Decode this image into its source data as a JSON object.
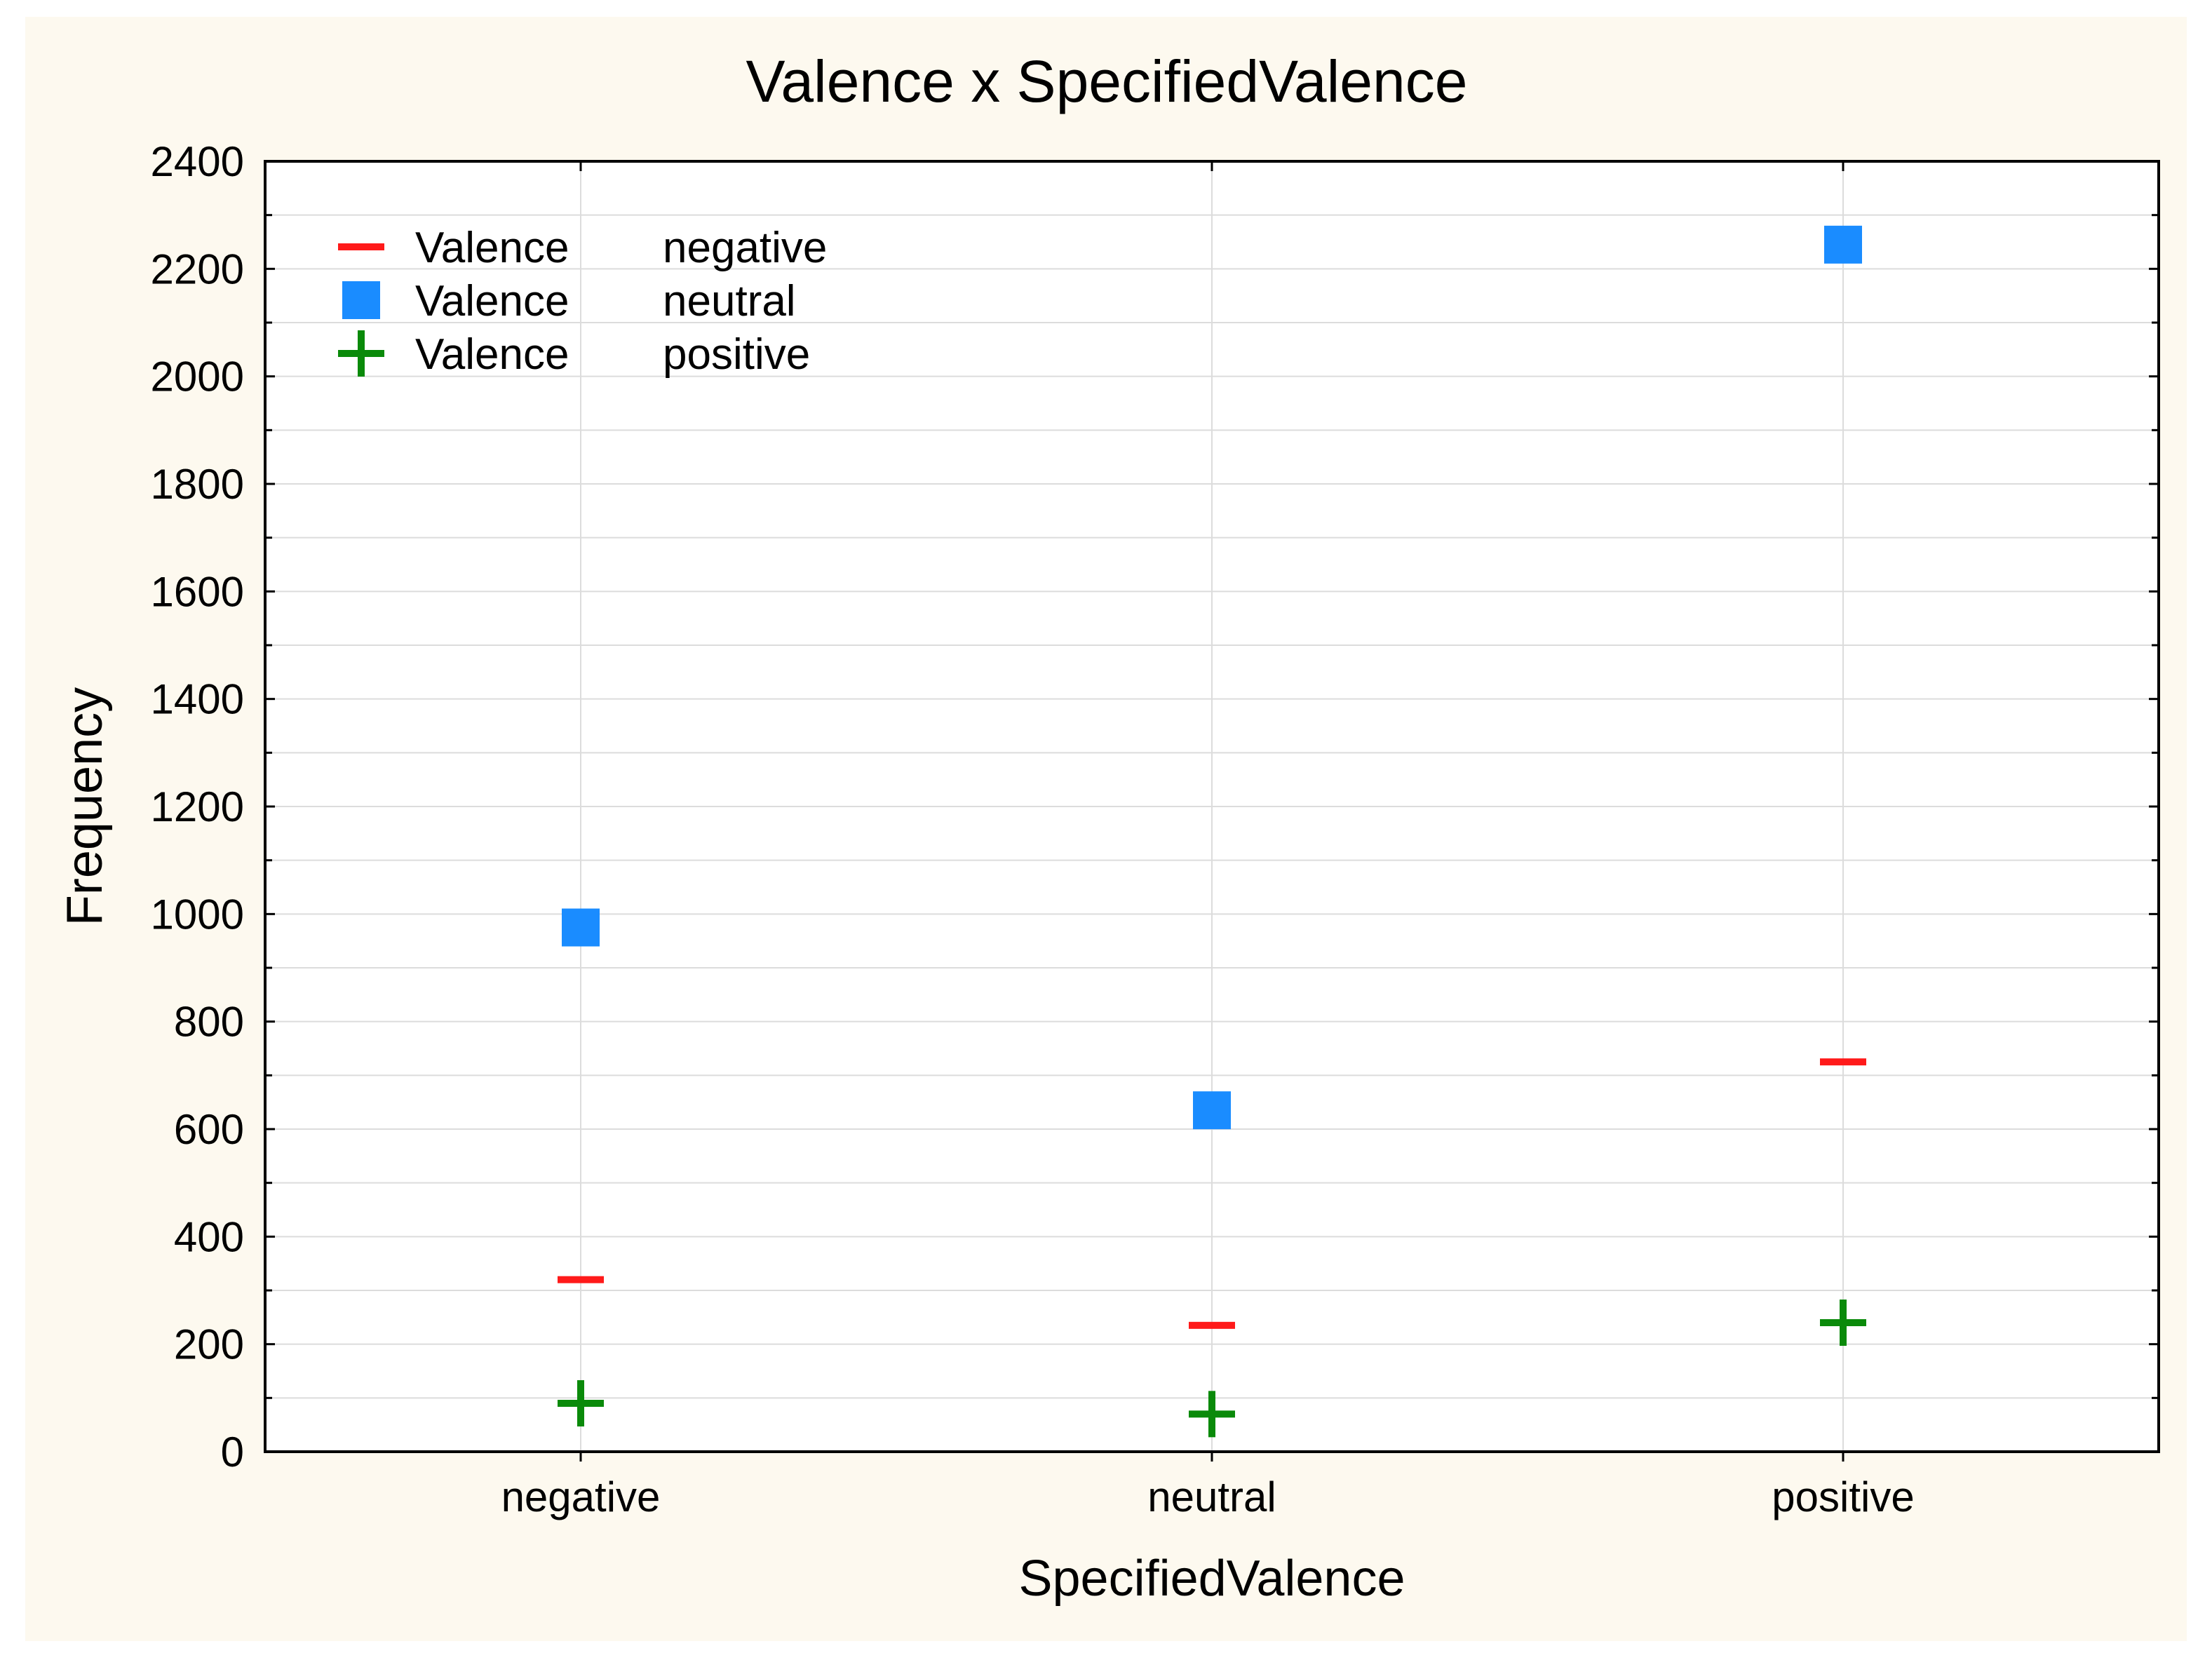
{
  "colors": {
    "background": "#fdf9ef",
    "plot_background": "#ffffff",
    "grid": "#dcdcdc",
    "negative": "#ff1a1a",
    "neutral": "#1a8cff",
    "positive": "#0a8a0a"
  },
  "chart_data": {
    "type": "scatter",
    "title": "Valence x SpecifiedValence",
    "xlabel": "SpecifiedValence",
    "ylabel": "Frequency",
    "categories": [
      "negative",
      "neutral",
      "positive"
    ],
    "ylim": [
      0,
      2400
    ],
    "yticks": [
      "0",
      "200",
      "400",
      "600",
      "800",
      "1000",
      "1200",
      "1400",
      "1600",
      "1800",
      "2000",
      "2200",
      "2400"
    ],
    "grid": true,
    "legend_position": "top-left",
    "series": [
      {
        "name": "Valence",
        "level": "negative",
        "marker": "dash",
        "color": "#ff1a1a",
        "values": [
          320,
          235,
          725
        ]
      },
      {
        "name": "Valence",
        "level": "neutral",
        "marker": "square",
        "color": "#1a8cff",
        "values": [
          975,
          635,
          2245
        ]
      },
      {
        "name": "Valence",
        "level": "positive",
        "marker": "plus",
        "color": "#0a8a0a",
        "values": [
          90,
          70,
          240
        ]
      }
    ]
  }
}
